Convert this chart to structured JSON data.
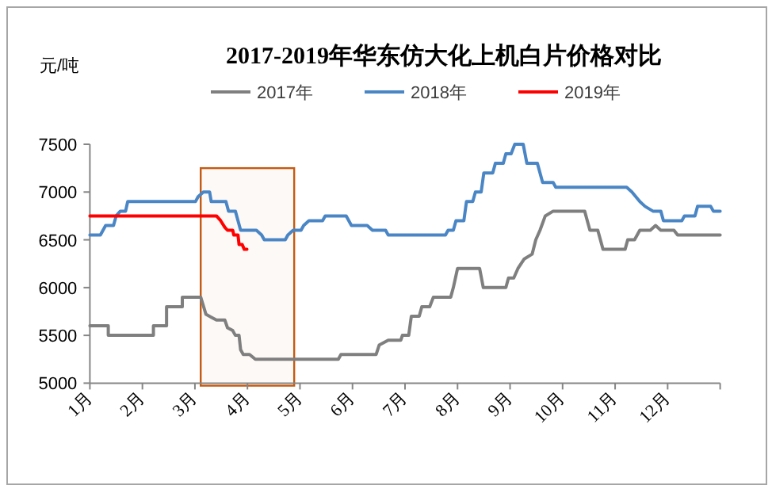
{
  "chart_data": {
    "type": "line",
    "title": "2017-2019年华东仿大化上机白片价格对比",
    "ylabel": "元/吨",
    "legend": "top",
    "grid": false,
    "xlim": [
      1,
      13
    ],
    "xticks": [
      {
        "value": 1,
        "label": "1月"
      },
      {
        "value": 2,
        "label": "2月"
      },
      {
        "value": 3,
        "label": "3月"
      },
      {
        "value": 4,
        "label": "4月"
      },
      {
        "value": 5,
        "label": "5月"
      },
      {
        "value": 6,
        "label": "6月"
      },
      {
        "value": 7,
        "label": "7月"
      },
      {
        "value": 8,
        "label": "8月"
      },
      {
        "value": 9,
        "label": "9月"
      },
      {
        "value": 10,
        "label": "10月"
      },
      {
        "value": 11,
        "label": "11月"
      },
      {
        "value": 12,
        "label": "12月"
      },
      {
        "value": 13,
        "label": null
      }
    ],
    "ylim": [
      5000,
      7500
    ],
    "yticks": [
      5000,
      5500,
      6000,
      6500,
      7000,
      7500
    ],
    "bands": [
      {
        "axis": "x",
        "from": 3.11,
        "to": 4.89,
        "color": "#c55a11"
      }
    ],
    "series": [
      {
        "name": "2017年",
        "color": "#7f7f7f",
        "x": [
          1,
          1.35,
          1.35,
          2.21,
          2.21,
          2.46,
          2.46,
          2.76,
          2.76,
          3.11,
          3.21,
          3.31,
          3.41,
          3.57,
          3.62,
          3.72,
          3.77,
          3.84,
          3.87,
          3.92,
          4.04,
          4.15,
          5.73,
          5.78,
          6.45,
          6.51,
          6.68,
          6.92,
          6.95,
          7.07,
          7.12,
          7.27,
          7.32,
          7.47,
          7.54,
          7.87,
          7.92,
          8.0,
          8.42,
          8.49,
          8.92,
          8.97,
          9.07,
          9.15,
          9.27,
          9.42,
          9.49,
          9.57,
          9.67,
          9.82,
          10.42,
          10.52,
          10.67,
          10.77,
          11.19,
          11.24,
          11.37,
          11.47,
          11.67,
          11.77,
          11.87,
          12.12,
          12.19,
          13
        ],
        "values": [
          5600,
          5600,
          5500,
          5500,
          5600,
          5600,
          5800,
          5800,
          5900,
          5900,
          5720,
          5690,
          5660,
          5660,
          5580,
          5550,
          5500,
          5500,
          5350,
          5300,
          5300,
          5250,
          5250,
          5300,
          5300,
          5400,
          5450,
          5450,
          5500,
          5500,
          5700,
          5700,
          5800,
          5800,
          5900,
          5900,
          6000,
          6200,
          6200,
          6000,
          6000,
          6100,
          6100,
          6200,
          6300,
          6350,
          6500,
          6600,
          6750,
          6800,
          6800,
          6600,
          6600,
          6400,
          6400,
          6500,
          6500,
          6600,
          6600,
          6650,
          6600,
          6600,
          6550,
          6550
        ]
      },
      {
        "name": "2018年",
        "color": "#4a86c5",
        "x": [
          1,
          1.2,
          1.3,
          1.45,
          1.5,
          1.58,
          1.68,
          1.72,
          3.01,
          3.06,
          3.16,
          3.28,
          3.31,
          3.59,
          3.64,
          3.77,
          3.82,
          3.87,
          4.17,
          4.27,
          4.32,
          4.72,
          4.77,
          4.87,
          5.02,
          5.07,
          5.17,
          5.43,
          5.48,
          5.88,
          5.98,
          6.28,
          6.38,
          6.63,
          6.68,
          7.77,
          7.82,
          7.92,
          7.97,
          8.12,
          8.17,
          8.29,
          8.34,
          8.45,
          8.5,
          8.67,
          8.72,
          8.87,
          8.92,
          9.02,
          9.09,
          9.25,
          9.32,
          9.52,
          9.62,
          9.82,
          9.87,
          11.22,
          11.32,
          11.47,
          11.57,
          11.72,
          11.87,
          11.92,
          12.27,
          12.32,
          12.52,
          12.57,
          12.82,
          12.87,
          13
        ],
        "values": [
          6550,
          6550,
          6650,
          6650,
          6750,
          6800,
          6800,
          6900,
          6900,
          6950,
          7000,
          7000,
          6900,
          6900,
          6800,
          6800,
          6700,
          6600,
          6600,
          6550,
          6500,
          6500,
          6550,
          6600,
          6600,
          6650,
          6700,
          6700,
          6750,
          6750,
          6650,
          6650,
          6600,
          6600,
          6550,
          6550,
          6600,
          6600,
          6700,
          6700,
          6900,
          6900,
          7000,
          7000,
          7200,
          7200,
          7300,
          7300,
          7400,
          7400,
          7500,
          7500,
          7300,
          7300,
          7100,
          7100,
          7050,
          7050,
          7000,
          6900,
          6850,
          6800,
          6800,
          6700,
          6700,
          6750,
          6750,
          6850,
          6850,
          6800,
          6800
        ]
      },
      {
        "name": "2019年",
        "color": "#ff0000",
        "x": [
          1,
          3.41,
          3.49,
          3.57,
          3.62,
          3.72,
          3.74,
          3.82,
          3.84,
          3.9,
          3.94,
          3.99
        ],
        "values": [
          6750,
          6750,
          6700,
          6630,
          6600,
          6600,
          6550,
          6550,
          6450,
          6450,
          6400,
          6400
        ]
      }
    ]
  }
}
